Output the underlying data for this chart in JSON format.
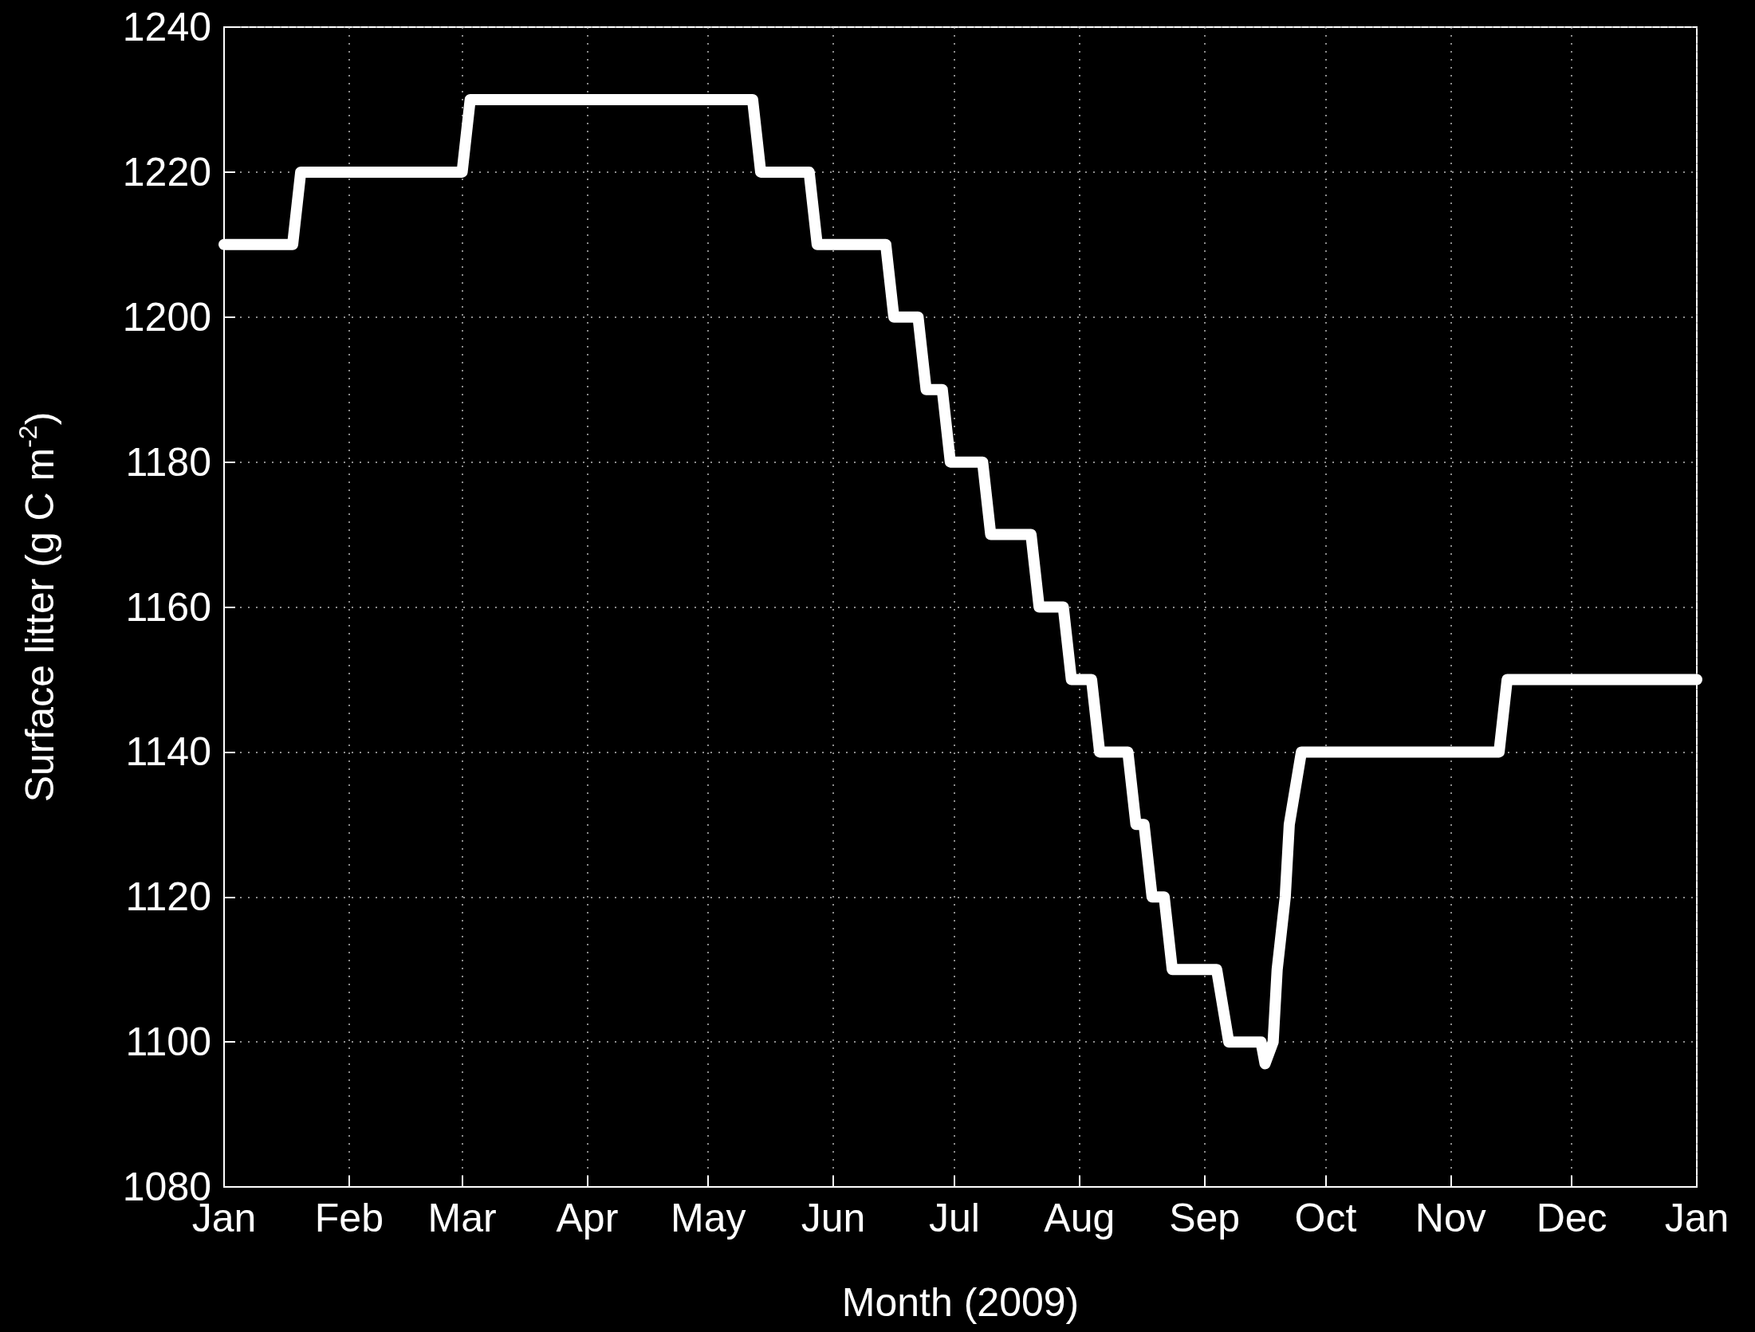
{
  "chart_data": {
    "type": "line",
    "xlabel": "Month (2009)",
    "ylabel": "Surface litter (g C m$^{-2}$)",
    "x": [
      "2009-01-01",
      "2009-01-18",
      "2009-01-20",
      "2009-03-01",
      "2009-03-03",
      "2009-05-12",
      "2009-05-14",
      "2009-05-26",
      "2009-05-28",
      "2009-06-14",
      "2009-06-16",
      "2009-06-22",
      "2009-06-24",
      "2009-06-28",
      "2009-06-30",
      "2009-07-08",
      "2009-07-10",
      "2009-07-20",
      "2009-07-22",
      "2009-07-28",
      "2009-07-30",
      "2009-08-04",
      "2009-08-06",
      "2009-08-13",
      "2009-08-15",
      "2009-08-17",
      "2009-08-19",
      "2009-08-22",
      "2009-08-24",
      "2009-09-04",
      "2009-09-07",
      "2009-09-15",
      "2009-09-16",
      "2009-09-18",
      "2009-09-19",
      "2009-09-21",
      "2009-09-22",
      "2009-09-25",
      "2009-11-13",
      "2009-11-15",
      "2010-01-01"
    ],
    "series": [
      {
        "color": "#ffffff",
        "values": [
          1210,
          1210,
          1220,
          1220,
          1230,
          1230,
          1220,
          1220,
          1210,
          1210,
          1200,
          1200,
          1190,
          1190,
          1180,
          1180,
          1170,
          1170,
          1160,
          1160,
          1150,
          1150,
          1140,
          1140,
          1130,
          1130,
          1120,
          1120,
          1110,
          1110,
          1100,
          1100,
          1097,
          1100,
          1110,
          1120,
          1130,
          1140,
          1140,
          1150,
          1150
        ]
      }
    ],
    "xlim": [
      "2009-01-01",
      "2010-01-01"
    ],
    "xticks": [
      {
        "value": "2009-01-01",
        "label": "Jan"
      },
      {
        "value": "2009-02-01",
        "label": "Feb"
      },
      {
        "value": "2009-03-01",
        "label": "Mar"
      },
      {
        "value": "2009-04-01",
        "label": "Apr"
      },
      {
        "value": "2009-05-01",
        "label": "May"
      },
      {
        "value": "2009-06-01",
        "label": "Jun"
      },
      {
        "value": "2009-07-01",
        "label": "Jul"
      },
      {
        "value": "2009-08-01",
        "label": "Aug"
      },
      {
        "value": "2009-09-01",
        "label": "Sep"
      },
      {
        "value": "2009-10-01",
        "label": "Oct"
      },
      {
        "value": "2009-11-01",
        "label": "Nov"
      },
      {
        "value": "2009-12-01",
        "label": "Dec"
      },
      {
        "value": "2010-01-01",
        "label": "Jan"
      }
    ],
    "ylim": [
      1080,
      1240
    ],
    "yticks": [
      1080,
      1100,
      1120,
      1140,
      1160,
      1180,
      1200,
      1220,
      1240
    ],
    "grid": true,
    "line_style": "solid"
  }
}
